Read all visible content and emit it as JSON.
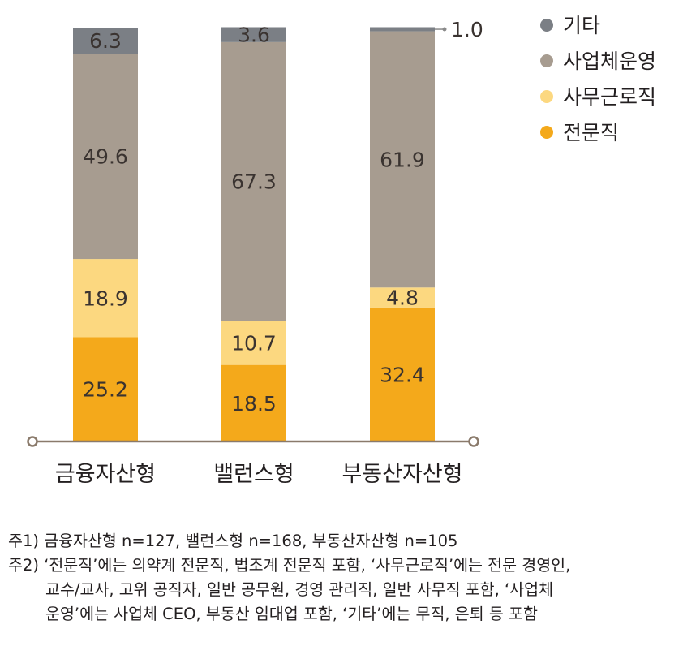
{
  "chart_data": {
    "type": "bar",
    "stacked": true,
    "orientation": "vertical",
    "categories": [
      "금융자산형",
      "밸런스형",
      "부동산자산형"
    ],
    "series": [
      {
        "name": "전문직",
        "values": [
          25.2,
          18.5,
          32.4
        ],
        "color": "#f4a91b",
        "labels": [
          "25.2",
          "18.5",
          "32.4"
        ]
      },
      {
        "name": "사무근로직",
        "values": [
          18.9,
          10.7,
          4.8
        ],
        "color": "#fcd880",
        "labels": [
          "18.9",
          "10.7",
          "4.8"
        ]
      },
      {
        "name": "사업체운영",
        "values": [
          49.6,
          67.3,
          61.9
        ],
        "color": "#a79c90",
        "labels": [
          "49.6",
          "67.3",
          "61.9"
        ]
      },
      {
        "name": "기타",
        "values": [
          6.3,
          3.6,
          1.0
        ],
        "color": "#7b7f85",
        "labels": [
          "6.3",
          "3.6",
          "1.0"
        ]
      }
    ],
    "legend_order": [
      "기타",
      "사업체운영",
      "사무근로직",
      "전문직"
    ],
    "legend_position": "top-right",
    "ylim": [
      0,
      100
    ],
    "grid": false,
    "axis_color": "#8a7a6b"
  },
  "notes": [
    "주1) 금융자산형 n=127, 밸런스형 n=168, 부동산자산형 n=105",
    "주2) ‘전문직’에는 의약계 전문직, 법조계 전문직 포함, ‘사무근로직’에는 전문 경영인,",
    "교수/교사, 고위 공직자, 일반 공무원, 경영 관리직, 일반 사무직 포함, ‘사업체",
    "운영’에는 사업체 CEO, 부동산 임대업 포함, ‘기타’에는 무직, 은퇴 등 포함"
  ]
}
